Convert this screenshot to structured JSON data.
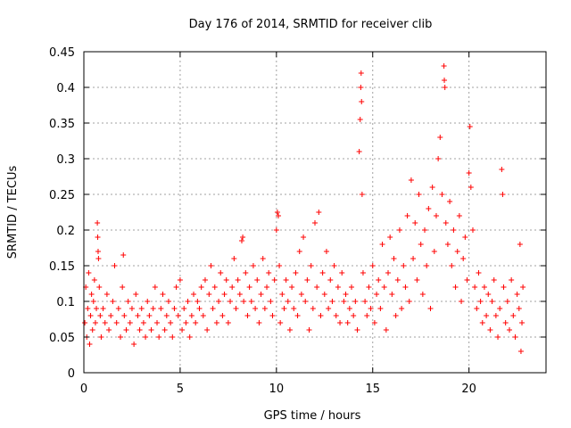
{
  "chart_data": {
    "type": "scatter",
    "title": "Day 176 of 2014, SRMTID for receiver clib",
    "xlabel": "GPS time / hours",
    "ylabel": "SRMTID / TECUs",
    "xlim": [
      0,
      24
    ],
    "ylim": [
      0,
      0.45
    ],
    "xticks": [
      0,
      5,
      10,
      15,
      20
    ],
    "xtick_labels": [
      "0",
      "5",
      "10",
      "15",
      "20"
    ],
    "yticks": [
      0,
      0.05,
      0.1,
      0.15,
      0.2,
      0.25,
      0.3,
      0.35,
      0.4,
      0.45
    ],
    "ytick_labels": [
      "0",
      "0.05",
      "0.1",
      "0.15",
      "0.2",
      "0.25",
      "0.3",
      "0.35",
      "0.4",
      "0.45"
    ],
    "grid": true,
    "marker": "+",
    "series": [
      {
        "name": "SRMTID",
        "color": "#ff0000",
        "points": [
          [
            0.05,
            0.07
          ],
          [
            0.1,
            0.12
          ],
          [
            0.15,
            0.05
          ],
          [
            0.2,
            0.09
          ],
          [
            0.25,
            0.14
          ],
          [
            0.3,
            0.04
          ],
          [
            0.35,
            0.08
          ],
          [
            0.4,
            0.11
          ],
          [
            0.45,
            0.06
          ],
          [
            0.5,
            0.1
          ],
          [
            0.55,
            0.13
          ],
          [
            0.6,
            0.07
          ],
          [
            0.65,
            0.09
          ],
          [
            0.7,
            0.21
          ],
          [
            0.72,
            0.19
          ],
          [
            0.74,
            0.17
          ],
          [
            0.76,
            0.16
          ],
          [
            0.8,
            0.12
          ],
          [
            0.85,
            0.08
          ],
          [
            0.9,
            0.05
          ],
          [
            1.0,
            0.09
          ],
          [
            1.1,
            0.07
          ],
          [
            1.2,
            0.11
          ],
          [
            1.3,
            0.06
          ],
          [
            1.4,
            0.08
          ],
          [
            1.5,
            0.1
          ],
          [
            1.6,
            0.15
          ],
          [
            1.7,
            0.07
          ],
          [
            1.8,
            0.09
          ],
          [
            1.9,
            0.05
          ],
          [
            2.0,
            0.12
          ],
          [
            2.05,
            0.165
          ],
          [
            2.1,
            0.08
          ],
          [
            2.2,
            0.06
          ],
          [
            2.3,
            0.1
          ],
          [
            2.4,
            0.07
          ],
          [
            2.5,
            0.09
          ],
          [
            2.6,
            0.04
          ],
          [
            2.7,
            0.11
          ],
          [
            2.8,
            0.08
          ],
          [
            2.9,
            0.06
          ],
          [
            3.0,
            0.09
          ],
          [
            3.1,
            0.07
          ],
          [
            3.2,
            0.05
          ],
          [
            3.3,
            0.1
          ],
          [
            3.4,
            0.08
          ],
          [
            3.5,
            0.06
          ],
          [
            3.6,
            0.09
          ],
          [
            3.7,
            0.12
          ],
          [
            3.8,
            0.07
          ],
          [
            3.9,
            0.05
          ],
          [
            4.0,
            0.09
          ],
          [
            4.1,
            0.11
          ],
          [
            4.2,
            0.06
          ],
          [
            4.3,
            0.08
          ],
          [
            4.4,
            0.1
          ],
          [
            4.5,
            0.07
          ],
          [
            4.6,
            0.05
          ],
          [
            4.7,
            0.09
          ],
          [
            4.8,
            0.12
          ],
          [
            4.9,
            0.08
          ],
          [
            5.0,
            0.13
          ],
          [
            5.1,
            0.06
          ],
          [
            5.2,
            0.09
          ],
          [
            5.3,
            0.07
          ],
          [
            5.4,
            0.1
          ],
          [
            5.5,
            0.05
          ],
          [
            5.6,
            0.08
          ],
          [
            5.7,
            0.11
          ],
          [
            5.8,
            0.07
          ],
          [
            5.9,
            0.1
          ],
          [
            6.0,
            0.09
          ],
          [
            6.1,
            0.12
          ],
          [
            6.2,
            0.08
          ],
          [
            6.3,
            0.13
          ],
          [
            6.4,
            0.06
          ],
          [
            6.5,
            0.11
          ],
          [
            6.6,
            0.15
          ],
          [
            6.7,
            0.09
          ],
          [
            6.8,
            0.12
          ],
          [
            6.9,
            0.07
          ],
          [
            7.0,
            0.1
          ],
          [
            7.1,
            0.14
          ],
          [
            7.2,
            0.08
          ],
          [
            7.3,
            0.11
          ],
          [
            7.4,
            0.13
          ],
          [
            7.5,
            0.07
          ],
          [
            7.6,
            0.1
          ],
          [
            7.7,
            0.12
          ],
          [
            7.8,
            0.16
          ],
          [
            7.9,
            0.09
          ],
          [
            8.0,
            0.13
          ],
          [
            8.1,
            0.11
          ],
          [
            8.2,
            0.185
          ],
          [
            8.25,
            0.19
          ],
          [
            8.3,
            0.1
          ],
          [
            8.4,
            0.14
          ],
          [
            8.5,
            0.08
          ],
          [
            8.6,
            0.12
          ],
          [
            8.7,
            0.1
          ],
          [
            8.8,
            0.15
          ],
          [
            8.9,
            0.09
          ],
          [
            9.0,
            0.13
          ],
          [
            9.1,
            0.07
          ],
          [
            9.2,
            0.11
          ],
          [
            9.3,
            0.16
          ],
          [
            9.4,
            0.09
          ],
          [
            9.5,
            0.12
          ],
          [
            9.6,
            0.14
          ],
          [
            9.7,
            0.1
          ],
          [
            9.8,
            0.08
          ],
          [
            9.9,
            0.13
          ],
          [
            10.0,
            0.2
          ],
          [
            10.05,
            0.225
          ],
          [
            10.1,
            0.22
          ],
          [
            10.15,
            0.15
          ],
          [
            10.2,
            0.07
          ],
          [
            10.3,
            0.11
          ],
          [
            10.4,
            0.09
          ],
          [
            10.5,
            0.13
          ],
          [
            10.6,
            0.1
          ],
          [
            10.7,
            0.06
          ],
          [
            10.8,
            0.12
          ],
          [
            10.9,
            0.09
          ],
          [
            11.0,
            0.14
          ],
          [
            11.1,
            0.08
          ],
          [
            11.2,
            0.17
          ],
          [
            11.3,
            0.11
          ],
          [
            11.4,
            0.19
          ],
          [
            11.5,
            0.1
          ],
          [
            11.6,
            0.13
          ],
          [
            11.7,
            0.06
          ],
          [
            11.8,
            0.15
          ],
          [
            11.9,
            0.09
          ],
          [
            12.0,
            0.21
          ],
          [
            12.1,
            0.12
          ],
          [
            12.2,
            0.225
          ],
          [
            12.3,
            0.08
          ],
          [
            12.4,
            0.14
          ],
          [
            12.5,
            0.11
          ],
          [
            12.6,
            0.17
          ],
          [
            12.7,
            0.09
          ],
          [
            12.8,
            0.13
          ],
          [
            12.9,
            0.1
          ],
          [
            13.0,
            0.15
          ],
          [
            13.1,
            0.08
          ],
          [
            13.2,
            0.12
          ],
          [
            13.3,
            0.07
          ],
          [
            13.4,
            0.14
          ],
          [
            13.5,
            0.1
          ],
          [
            13.6,
            0.11
          ],
          [
            13.7,
            0.07
          ],
          [
            13.8,
            0.09
          ],
          [
            13.9,
            0.12
          ],
          [
            14.0,
            0.08
          ],
          [
            14.1,
            0.1
          ],
          [
            14.2,
            0.06
          ],
          [
            14.3,
            0.31
          ],
          [
            14.35,
            0.355
          ],
          [
            14.38,
            0.4
          ],
          [
            14.4,
            0.42
          ],
          [
            14.42,
            0.38
          ],
          [
            14.45,
            0.25
          ],
          [
            14.5,
            0.14
          ],
          [
            14.6,
            0.1
          ],
          [
            14.7,
            0.08
          ],
          [
            14.8,
            0.12
          ],
          [
            14.9,
            0.09
          ],
          [
            15.0,
            0.15
          ],
          [
            15.1,
            0.07
          ],
          [
            15.2,
            0.11
          ],
          [
            15.3,
            0.13
          ],
          [
            15.4,
            0.09
          ],
          [
            15.5,
            0.18
          ],
          [
            15.6,
            0.12
          ],
          [
            15.7,
            0.06
          ],
          [
            15.8,
            0.14
          ],
          [
            15.9,
            0.19
          ],
          [
            16.0,
            0.11
          ],
          [
            16.1,
            0.16
          ],
          [
            16.2,
            0.08
          ],
          [
            16.3,
            0.13
          ],
          [
            16.4,
            0.2
          ],
          [
            16.5,
            0.09
          ],
          [
            16.6,
            0.15
          ],
          [
            16.7,
            0.12
          ],
          [
            16.8,
            0.22
          ],
          [
            16.9,
            0.1
          ],
          [
            17.0,
            0.27
          ],
          [
            17.1,
            0.16
          ],
          [
            17.2,
            0.21
          ],
          [
            17.3,
            0.13
          ],
          [
            17.4,
            0.25
          ],
          [
            17.5,
            0.18
          ],
          [
            17.6,
            0.11
          ],
          [
            17.7,
            0.2
          ],
          [
            17.8,
            0.15
          ],
          [
            17.9,
            0.23
          ],
          [
            18.0,
            0.09
          ],
          [
            18.1,
            0.26
          ],
          [
            18.2,
            0.17
          ],
          [
            18.3,
            0.22
          ],
          [
            18.4,
            0.3
          ],
          [
            18.5,
            0.33
          ],
          [
            18.6,
            0.25
          ],
          [
            18.7,
            0.43
          ],
          [
            18.72,
            0.41
          ],
          [
            18.75,
            0.4
          ],
          [
            18.8,
            0.21
          ],
          [
            18.9,
            0.18
          ],
          [
            19.0,
            0.24
          ],
          [
            19.1,
            0.15
          ],
          [
            19.2,
            0.2
          ],
          [
            19.3,
            0.12
          ],
          [
            19.4,
            0.17
          ],
          [
            19.5,
            0.22
          ],
          [
            19.6,
            0.1
          ],
          [
            19.7,
            0.16
          ],
          [
            19.8,
            0.19
          ],
          [
            19.9,
            0.13
          ],
          [
            20.0,
            0.28
          ],
          [
            20.05,
            0.345
          ],
          [
            20.1,
            0.26
          ],
          [
            20.2,
            0.2
          ],
          [
            20.3,
            0.12
          ],
          [
            20.4,
            0.09
          ],
          [
            20.5,
            0.14
          ],
          [
            20.6,
            0.1
          ],
          [
            20.7,
            0.07
          ],
          [
            20.8,
            0.12
          ],
          [
            20.9,
            0.08
          ],
          [
            21.0,
            0.11
          ],
          [
            21.1,
            0.06
          ],
          [
            21.2,
            0.1
          ],
          [
            21.3,
            0.13
          ],
          [
            21.4,
            0.08
          ],
          [
            21.5,
            0.05
          ],
          [
            21.6,
            0.09
          ],
          [
            21.7,
            0.285
          ],
          [
            21.75,
            0.25
          ],
          [
            21.8,
            0.12
          ],
          [
            21.9,
            0.07
          ],
          [
            22.0,
            0.1
          ],
          [
            22.1,
            0.06
          ],
          [
            22.2,
            0.13
          ],
          [
            22.3,
            0.08
          ],
          [
            22.4,
            0.05
          ],
          [
            22.5,
            0.11
          ],
          [
            22.6,
            0.09
          ],
          [
            22.65,
            0.18
          ],
          [
            22.7,
            0.03
          ],
          [
            22.75,
            0.07
          ],
          [
            22.8,
            0.12
          ]
        ]
      }
    ]
  }
}
